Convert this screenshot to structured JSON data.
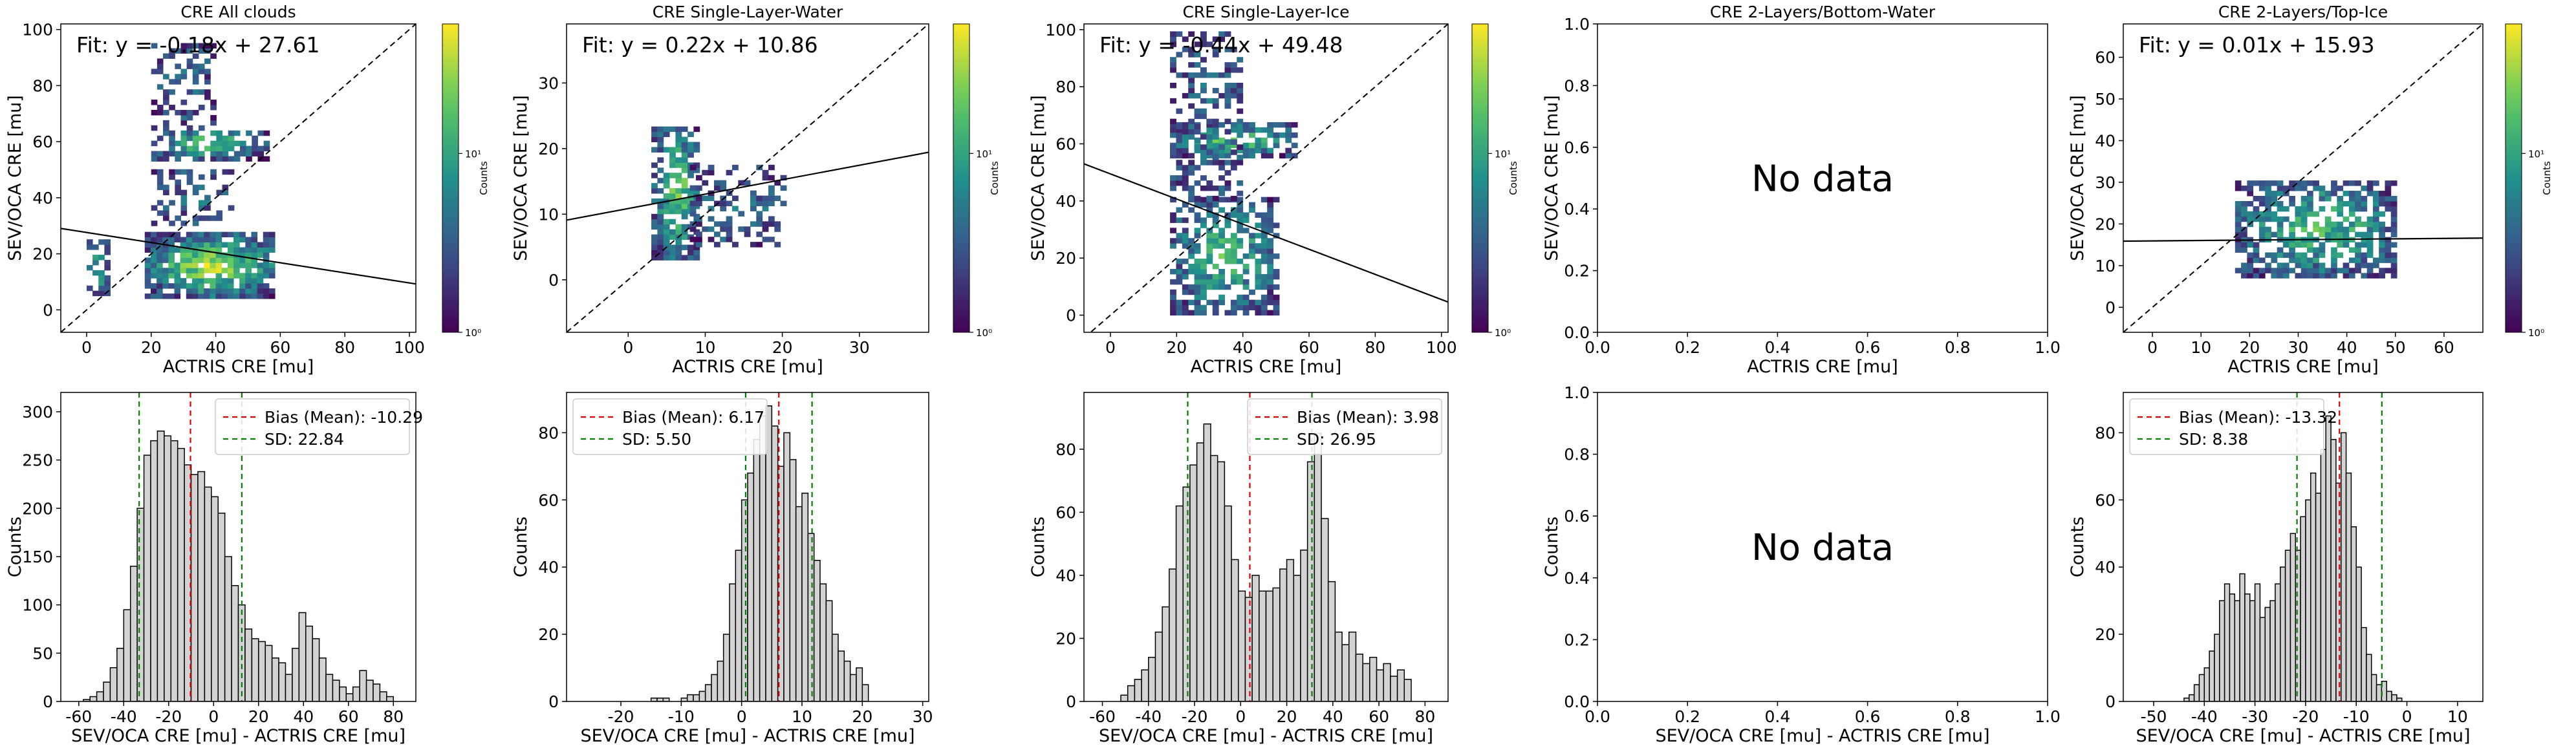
{
  "figure": {
    "title_font": 25,
    "panels_top": [
      {
        "title": "CRE All clouds"
      },
      {
        "title": "CRE Single-Layer-Water"
      },
      {
        "title": "CRE Single-Layer-Ice"
      },
      {
        "title": "CRE 2-Layers/Bottom-Water"
      },
      {
        "title": "CRE 2-Layers/Top-Ice"
      }
    ]
  },
  "chart_data": [
    {
      "type": "heatmap",
      "title": "CRE All clouds",
      "xlabel": "ACTRIS CRE [mu]",
      "ylabel": "SEV/OCA CRE [mu]",
      "xlim": [
        -8,
        102
      ],
      "ylim": [
        -8,
        102
      ],
      "xticks": [
        0,
        20,
        40,
        60,
        80,
        100
      ],
      "yticks": [
        0,
        20,
        40,
        60,
        80,
        100
      ],
      "fit_text": "Fit: y = -0.18x + 27.61",
      "fit": {
        "slope": -0.18,
        "intercept": 27.61
      },
      "colorbar": {
        "label": "Counts",
        "ticks": [
          "10⁰",
          "10¹"
        ]
      },
      "clusters": [
        {
          "x": [
            0,
            6
          ],
          "y": [
            5,
            24
          ],
          "density": 0.5
        },
        {
          "x": [
            18,
            58
          ],
          "y": [
            4,
            26
          ],
          "density": 0.85
        },
        {
          "x": [
            20,
            55
          ],
          "y": [
            53,
            64
          ],
          "density": 0.6
        },
        {
          "x": [
            20,
            45
          ],
          "y": [
            30,
            50
          ],
          "density": 0.2
        },
        {
          "x": [
            20,
            40
          ],
          "y": [
            64,
            95
          ],
          "density": 0.15
        }
      ]
    },
    {
      "type": "heatmap",
      "title": "CRE Single-Layer-Water",
      "xlabel": "ACTRIS CRE [mu]",
      "ylabel": "SEV/OCA CRE [mu]",
      "xlim": [
        -8,
        39
      ],
      "ylim": [
        -8,
        39
      ],
      "xticks": [
        0,
        10,
        20,
        30
      ],
      "yticks": [
        0,
        10,
        20,
        30
      ],
      "fit_text": "Fit: y = 0.22x + 10.86",
      "fit": {
        "slope": 0.22,
        "intercept": 10.86
      },
      "colorbar": {
        "label": "Counts",
        "ticks": [
          "10⁰",
          "10¹"
        ]
      },
      "clusters": [
        {
          "x": [
            3,
            9
          ],
          "y": [
            3,
            23
          ],
          "density": 0.7
        },
        {
          "x": [
            8,
            20
          ],
          "y": [
            5,
            17
          ],
          "density": 0.2
        }
      ]
    },
    {
      "type": "heatmap",
      "title": "CRE Single-Layer-Ice",
      "xlabel": "ACTRIS CRE [mu]",
      "ylabel": "SEV/OCA CRE [mu]",
      "xlim": [
        -8,
        102
      ],
      "ylim": [
        -6,
        102
      ],
      "xticks": [
        0,
        20,
        40,
        60,
        80,
        100
      ],
      "yticks": [
        0,
        20,
        40,
        60,
        80,
        100
      ],
      "fit_text": "Fit: y = -0.44x + 49.48",
      "fit": {
        "slope": -0.44,
        "intercept": 49.48
      },
      "colorbar": {
        "label": "Counts",
        "ticks": [
          "10⁰",
          "10¹"
        ]
      },
      "clusters": [
        {
          "x": [
            18,
            55
          ],
          "y": [
            55,
            66
          ],
          "density": 0.65
        },
        {
          "x": [
            18,
            50
          ],
          "y": [
            0,
            40
          ],
          "density": 0.55
        },
        {
          "x": [
            18,
            40
          ],
          "y": [
            40,
            98
          ],
          "density": 0.2
        }
      ]
    },
    {
      "type": "scatter",
      "title": "CRE 2-Layers/Bottom-Water",
      "xlabel": "ACTRIS CRE [mu]",
      "ylabel": "SEV/OCA CRE [mu]",
      "xlim": [
        0,
        1
      ],
      "ylim": [
        0,
        1
      ],
      "xticks": [
        "0.0",
        "0.2",
        "0.4",
        "0.6",
        "0.8",
        "1.0"
      ],
      "yticks": [
        "0.0",
        "0.2",
        "0.4",
        "0.6",
        "0.8",
        "1.0"
      ],
      "message": "No data"
    },
    {
      "type": "heatmap",
      "title": "CRE 2-Layers/Top-Ice",
      "xlabel": "ACTRIS CRE [mu]",
      "ylabel": "SEV/OCA CRE [mu]",
      "xlim": [
        -6,
        68
      ],
      "ylim": [
        -6,
        68
      ],
      "xticks": [
        0,
        10,
        20,
        30,
        40,
        50,
        60
      ],
      "yticks": [
        0,
        10,
        20,
        30,
        40,
        50,
        60
      ],
      "fit_text": "Fit: y = 0.01x + 15.93",
      "fit": {
        "slope": 0.01,
        "intercept": 15.93
      },
      "colorbar": {
        "label": "Counts",
        "ticks": [
          "10⁰",
          "10¹"
        ]
      },
      "clusters": [
        {
          "x": [
            17,
            50
          ],
          "y": [
            7,
            30
          ],
          "density": 0.6
        }
      ]
    },
    {
      "type": "bar",
      "xlabel": "SEV/OCA CRE [mu] - ACTRIS CRE [mu]",
      "ylabel": "Counts",
      "xlim": [
        -68,
        90
      ],
      "ylim": [
        0,
        320
      ],
      "xticks": [
        -60,
        -40,
        -20,
        0,
        20,
        40,
        60,
        80
      ],
      "yticks": [
        0,
        50,
        100,
        150,
        200,
        250,
        300
      ],
      "bin_start": -58,
      "bin_width": 3,
      "values": [
        2,
        5,
        10,
        20,
        35,
        55,
        95,
        140,
        200,
        255,
        270,
        280,
        275,
        270,
        262,
        245,
        235,
        238,
        222,
        212,
        195,
        150,
        120,
        100,
        75,
        65,
        62,
        58,
        45,
        40,
        28,
        55,
        92,
        78,
        65,
        45,
        28,
        22,
        15,
        8,
        15,
        32,
        22,
        18,
        10,
        5
      ],
      "bias": -10.29,
      "sd": 22.84,
      "legend": [
        "Bias (Mean): -10.29",
        "SD: 22.84"
      ],
      "legend_position": "top-right"
    },
    {
      "type": "bar",
      "xlabel": "SEV/OCA CRE [mu] - ACTRIS CRE [mu]",
      "ylabel": "Counts",
      "xlim": [
        -29,
        31
      ],
      "ylim": [
        0,
        92
      ],
      "xticks": [
        -20,
        -10,
        0,
        10,
        20,
        30
      ],
      "yticks": [
        0,
        20,
        40,
        60,
        80
      ],
      "bin_start": -15,
      "bin_width": 1,
      "values": [
        1,
        1,
        1,
        0,
        0,
        1,
        2,
        2,
        3,
        5,
        8,
        12,
        20,
        35,
        45,
        60,
        68,
        78,
        85,
        88,
        82,
        70,
        80,
        72,
        58,
        62,
        50,
        42,
        35,
        30,
        20,
        15,
        12,
        8,
        10,
        5
      ],
      "bias": 6.17,
      "sd": 5.5,
      "legend": [
        "Bias (Mean): 6.17",
        "SD: 5.50"
      ],
      "legend_position": "top-left"
    },
    {
      "type": "bar",
      "xlabel": "SEV/OCA CRE [mu] - ACTRIS CRE [mu]",
      "ylabel": "Counts",
      "xlim": [
        -68,
        90
      ],
      "ylim": [
        0,
        98
      ],
      "xticks": [
        -60,
        -40,
        -20,
        0,
        20,
        40,
        60,
        80
      ],
      "yticks": [
        0,
        20,
        40,
        60,
        80
      ],
      "bin_start": -52,
      "bin_width": 3,
      "values": [
        2,
        5,
        7,
        10,
        14,
        22,
        30,
        42,
        62,
        68,
        75,
        82,
        88,
        78,
        76,
        62,
        45,
        35,
        33,
        40,
        35,
        35,
        36,
        42,
        45,
        40,
        48,
        76,
        85,
        58,
        38,
        22,
        18,
        22,
        15,
        12,
        14,
        10,
        12,
        8,
        10,
        7
      ],
      "bias": 3.98,
      "sd": 26.95,
      "legend": [
        "Bias (Mean): 3.98",
        "SD: 26.95"
      ],
      "legend_position": "top-right"
    },
    {
      "type": "bar",
      "xlabel": "SEV/OCA CRE [mu] - ACTRIS CRE [mu]",
      "ylabel": "Counts",
      "xlim": [
        0,
        1
      ],
      "ylim": [
        0,
        1
      ],
      "xticks": [
        "0.0",
        "0.2",
        "0.4",
        "0.6",
        "0.8",
        "1.0"
      ],
      "yticks": [
        "0.0",
        "0.2",
        "0.4",
        "0.6",
        "0.8",
        "1.0"
      ],
      "message": "No data"
    },
    {
      "type": "bar",
      "xlabel": "SEV/OCA CRE [mu] - ACTRIS CRE [mu]",
      "ylabel": "Counts",
      "xlim": [
        -56,
        15
      ],
      "ylim": [
        0,
        92
      ],
      "xticks": [
        -50,
        -40,
        -30,
        -20,
        -10,
        0,
        10
      ],
      "yticks": [
        0,
        20,
        40,
        60,
        80
      ],
      "bin_start": -44,
      "bin_width": 1,
      "values": [
        1,
        2,
        5,
        8,
        10,
        15,
        20,
        30,
        35,
        32,
        30,
        38,
        32,
        30,
        35,
        25,
        28,
        30,
        35,
        40,
        45,
        50,
        45,
        55,
        60,
        68,
        62,
        75,
        85,
        78,
        65,
        80,
        68,
        52,
        40,
        22,
        14,
        8,
        5,
        6,
        3,
        2,
        1
      ],
      "bias": -13.32,
      "sd": 8.38,
      "legend": [
        "Bias (Mean): -13.32",
        "SD: 8.38"
      ],
      "legend_position": "top-left"
    }
  ]
}
